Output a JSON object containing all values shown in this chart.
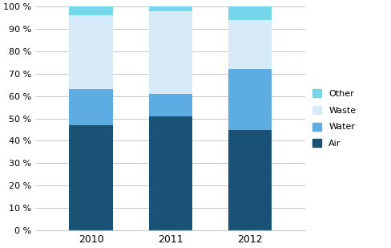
{
  "categories": [
    "2010",
    "2011",
    "2012"
  ],
  "series": {
    "Air": [
      47,
      51,
      45
    ],
    "Water": [
      16,
      10,
      27
    ],
    "Waste": [
      33,
      37,
      22
    ],
    "Other": [
      4,
      2,
      6
    ]
  },
  "colors": {
    "Air": "#1a5276",
    "Water": "#5dade2",
    "Waste": "#d6eaf8",
    "Other": "#76d7ea"
  },
  "legend_order": [
    "Other",
    "Waste",
    "Water",
    "Air"
  ],
  "plot_order": [
    "Air",
    "Water",
    "Waste",
    "Other"
  ],
  "ylim": [
    0,
    100
  ],
  "yticks": [
    0,
    10,
    20,
    30,
    40,
    50,
    60,
    70,
    80,
    90,
    100
  ],
  "ytick_labels": [
    "0 %",
    "10 %",
    "20 %",
    "30 %",
    "40 %",
    "50 %",
    "60 %",
    "70 %",
    "80 %",
    "90 %",
    "100 %"
  ],
  "background_color": "#ffffff",
  "grid_color": "#c8c8c8",
  "bar_width": 0.55
}
